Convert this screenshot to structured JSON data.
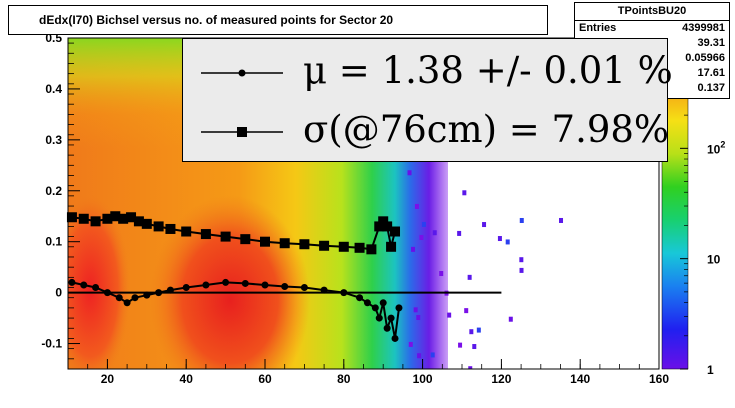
{
  "chart_data": {
    "type": "heatmap",
    "title": "dEdx(I70) Bichsel versus no. of measured points for Sector 20",
    "xlabel": "",
    "ylabel": "",
    "xlim": [
      10,
      160
    ],
    "ylim": [
      -0.15,
      0.5
    ],
    "x_ticks": [
      "20",
      "40",
      "60",
      "80",
      "100",
      "120",
      "140",
      "160"
    ],
    "y_ticks": [
      "-0.1",
      "0",
      "0.1",
      "0.2",
      "0.3",
      "0.4",
      "0.5"
    ],
    "z_scale": "log",
    "z_range": [
      1,
      1000
    ],
    "z_ticks": [
      "1",
      "10",
      "10^2"
    ],
    "stats": {
      "name": "TPointsBU20",
      "rows": [
        {
          "label": "Entries",
          "value": "4399981"
        },
        {
          "label": "",
          "value": "39.31"
        },
        {
          "label": "",
          "value": "0.05966"
        },
        {
          "label": "",
          "value": "17.61"
        },
        {
          "label": "",
          "value": "0.137"
        }
      ]
    },
    "legend": [
      {
        "text": "μ  =  1.38 +/-  0.01 %",
        "marker": "circle"
      },
      {
        "text": "σ(@76cm) =  7.98%",
        "marker": "square"
      }
    ],
    "series": [
      {
        "name": "mu",
        "marker": "circle",
        "x": [
          11,
          14,
          17,
          20,
          23,
          25,
          27,
          30,
          33,
          36,
          40,
          45,
          50,
          55,
          60,
          65,
          70,
          75,
          80,
          84,
          86,
          88,
          89,
          90,
          91,
          92,
          93,
          94
        ],
        "y": [
          0.02,
          0.015,
          0.01,
          0.0,
          -0.01,
          -0.02,
          -0.01,
          -0.005,
          0.0,
          0.005,
          0.01,
          0.015,
          0.02,
          0.018,
          0.015,
          0.012,
          0.01,
          0.005,
          0.0,
          -0.01,
          -0.02,
          -0.03,
          -0.05,
          -0.02,
          -0.07,
          -0.05,
          -0.09,
          -0.03
        ]
      },
      {
        "name": "sigma",
        "marker": "square",
        "x": [
          11,
          14,
          17,
          20,
          22,
          24,
          26,
          28,
          30,
          33,
          36,
          40,
          45,
          50,
          55,
          60,
          65,
          70,
          75,
          80,
          84,
          87,
          89,
          90,
          91,
          92,
          93
        ],
        "y": [
          0.148,
          0.145,
          0.14,
          0.145,
          0.15,
          0.145,
          0.148,
          0.14,
          0.135,
          0.13,
          0.125,
          0.12,
          0.115,
          0.11,
          0.105,
          0.1,
          0.097,
          0.095,
          0.092,
          0.09,
          0.088,
          0.085,
          0.13,
          0.14,
          0.13,
          0.09,
          0.12
        ]
      }
    ],
    "reference_line": {
      "y": 0.0,
      "x_start": 10,
      "x_end": 120
    }
  }
}
